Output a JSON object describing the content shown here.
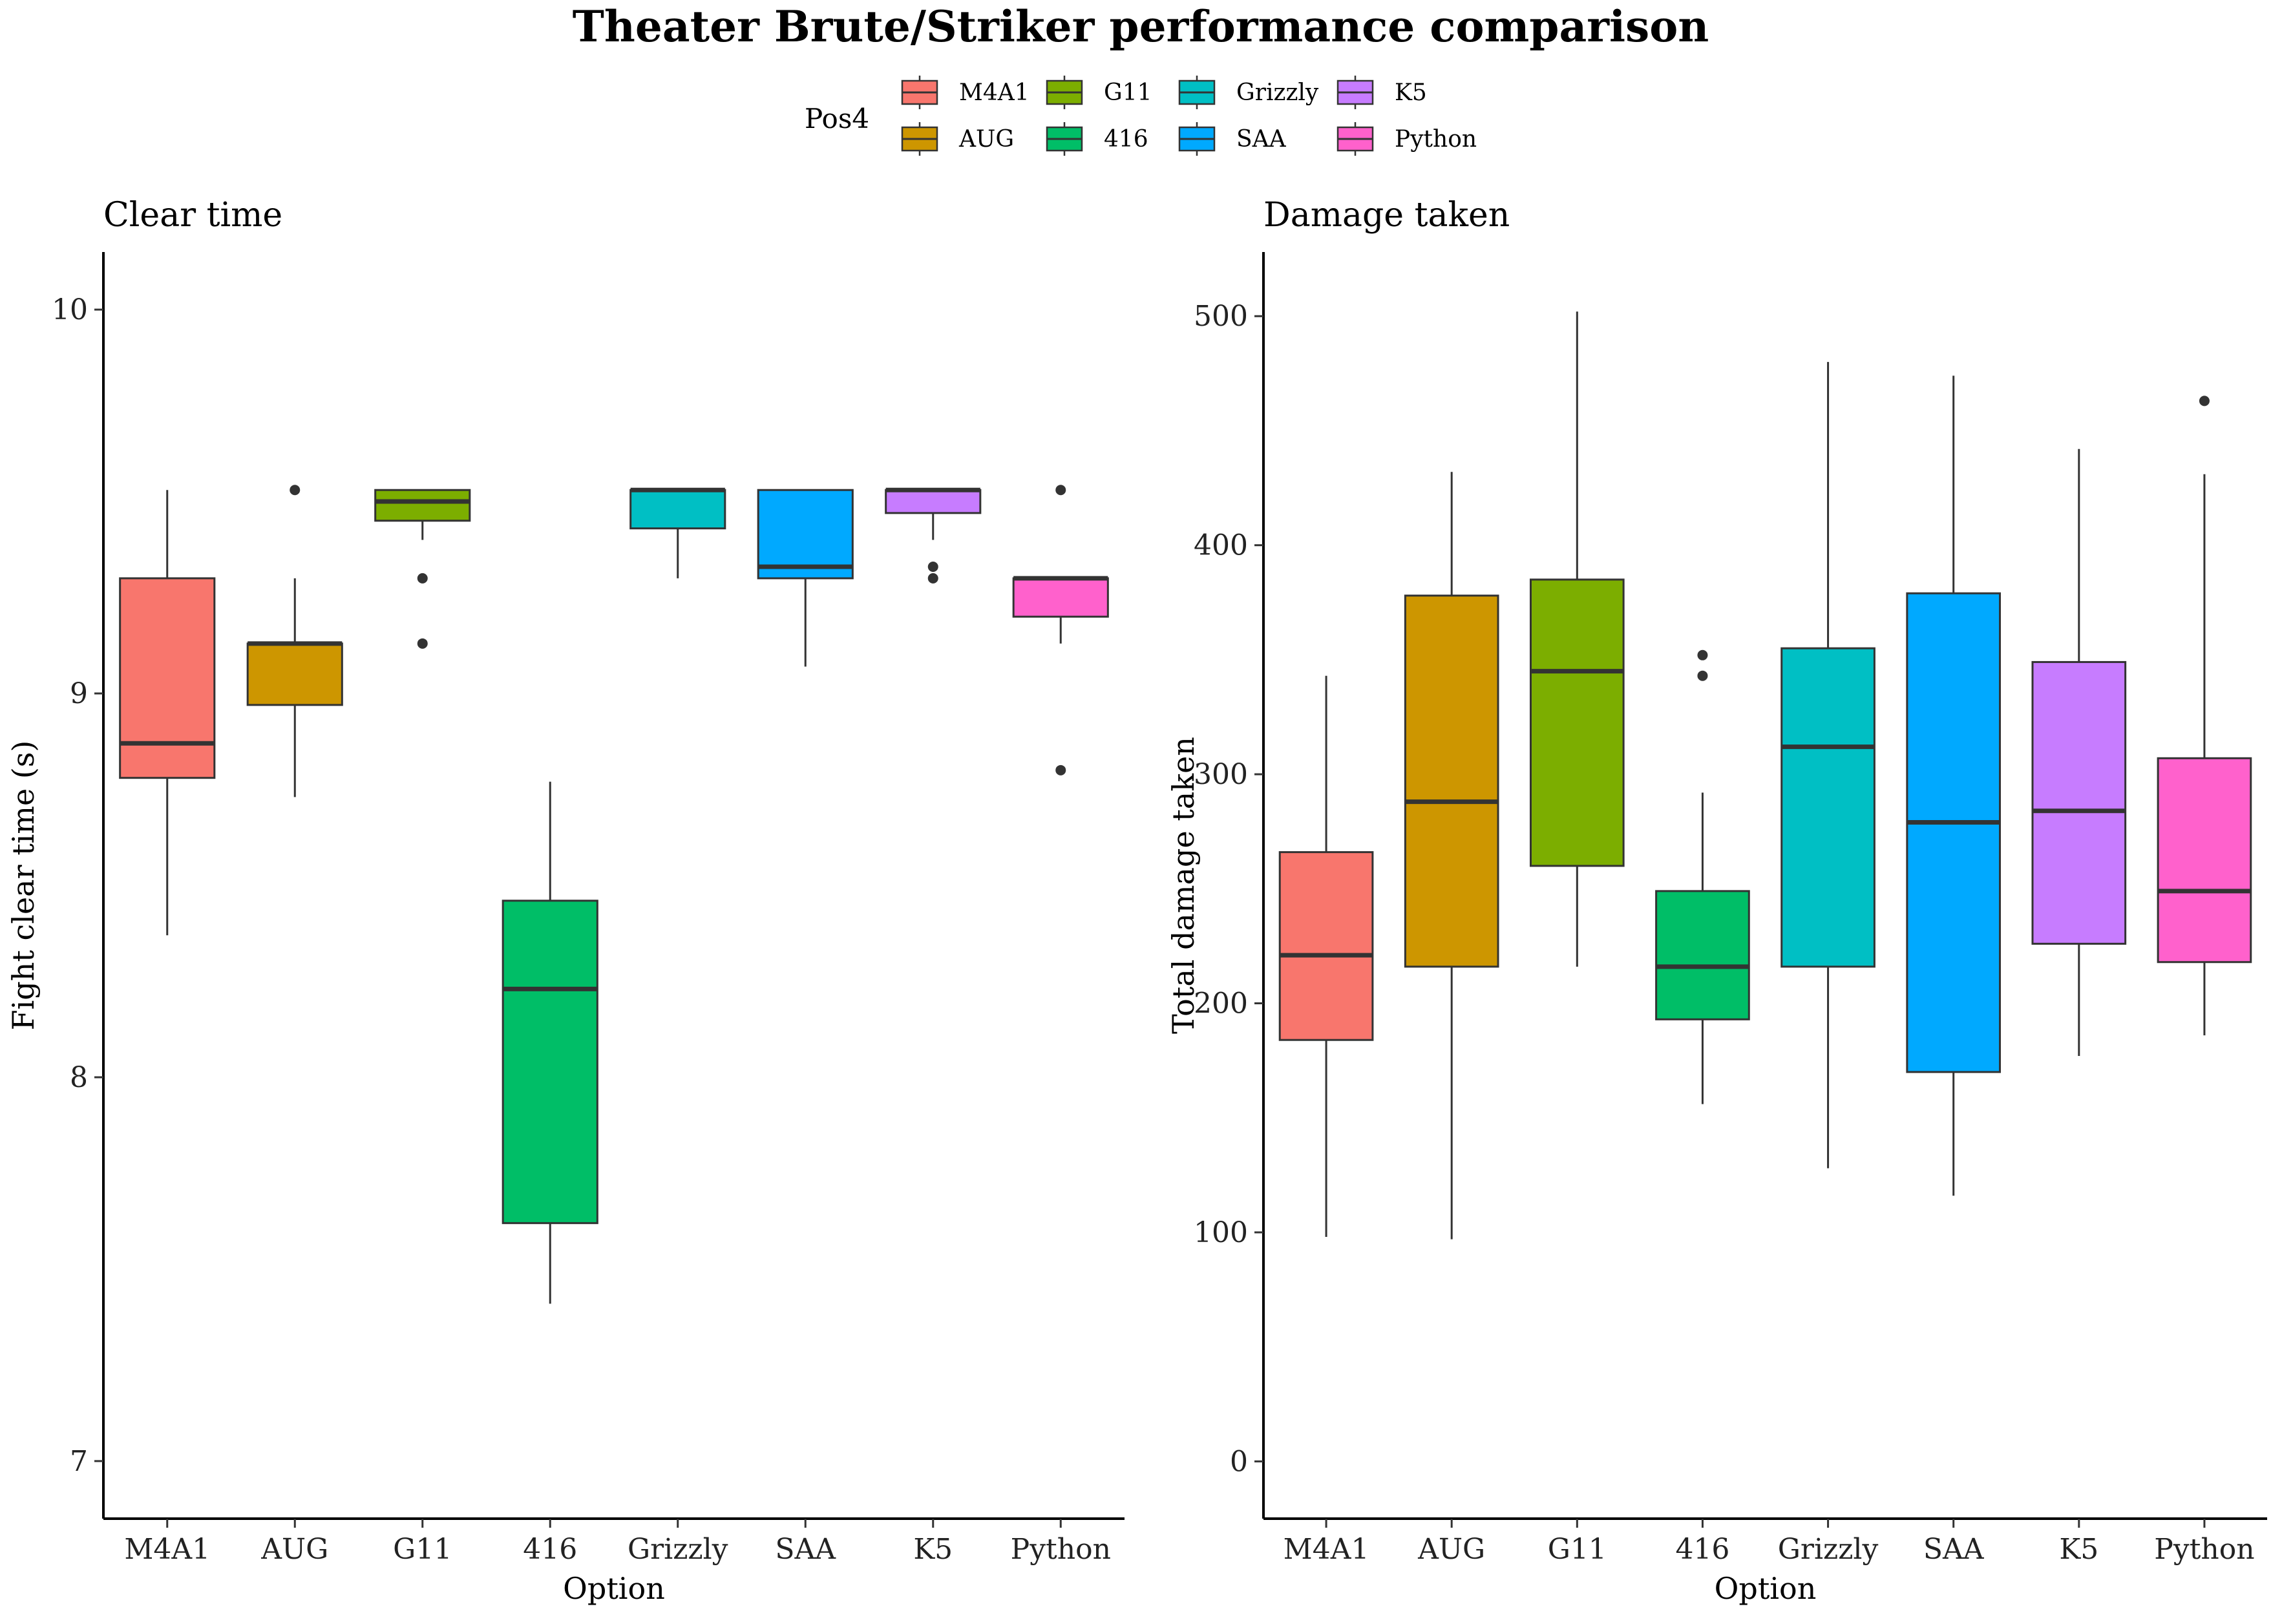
{
  "title": "Theater Brute/Striker performance comparison",
  "legend": {
    "title": "Pos4",
    "placement": "top",
    "items": [
      "M4A1",
      "G11",
      "Grizzly",
      "K5",
      "AUG",
      "416",
      "SAA",
      "Python"
    ]
  },
  "colors": {
    "M4A1": "#F8766D",
    "AUG": "#CD9600",
    "G11": "#7CAE00",
    "416": "#00BE67",
    "Grizzly": "#00BFC4",
    "SAA": "#00A9FF",
    "K5": "#C77CFF",
    "Python": "#FF61CC"
  },
  "chart_data": [
    {
      "type": "box",
      "title": "Clear time",
      "xlabel": "Option",
      "ylabel": "Fight clear time (s)",
      "ylim": [
        6.85,
        10.15
      ],
      "yticks": [
        7,
        8,
        9,
        10
      ],
      "categories": [
        "M4A1",
        "AUG",
        "G11",
        "416",
        "Grizzly",
        "SAA",
        "K5",
        "Python"
      ],
      "boxes": [
        {
          "name": "M4A1",
          "lower_whisker": 8.37,
          "q1": 8.78,
          "median": 8.87,
          "q3": 9.3,
          "upper_whisker": 9.53,
          "outliers": []
        },
        {
          "name": "AUG",
          "lower_whisker": 8.73,
          "q1": 8.97,
          "median": 9.13,
          "q3": 9.13,
          "upper_whisker": 9.3,
          "outliers": [
            9.53
          ]
        },
        {
          "name": "G11",
          "lower_whisker": 9.4,
          "q1": 9.45,
          "median": 9.5,
          "q3": 9.53,
          "upper_whisker": 9.53,
          "outliers": [
            9.3,
            9.13
          ]
        },
        {
          "name": "416",
          "lower_whisker": 7.41,
          "q1": 7.62,
          "median": 8.23,
          "q3": 8.46,
          "upper_whisker": 8.77,
          "outliers": []
        },
        {
          "name": "Grizzly",
          "lower_whisker": 9.3,
          "q1": 9.43,
          "median": 9.53,
          "q3": 9.53,
          "upper_whisker": 9.53,
          "outliers": []
        },
        {
          "name": "SAA",
          "lower_whisker": 9.07,
          "q1": 9.3,
          "median": 9.33,
          "q3": 9.53,
          "upper_whisker": 9.53,
          "outliers": []
        },
        {
          "name": "K5",
          "lower_whisker": 9.4,
          "q1": 9.47,
          "median": 9.53,
          "q3": 9.53,
          "upper_whisker": 9.53,
          "outliers": [
            9.33,
            9.3
          ]
        },
        {
          "name": "Python",
          "lower_whisker": 9.13,
          "q1": 9.2,
          "median": 9.3,
          "q3": 9.3,
          "upper_whisker": 9.3,
          "outliers": [
            9.53,
            8.8
          ]
        }
      ]
    },
    {
      "type": "box",
      "title": "Damage taken",
      "xlabel": "Option",
      "ylabel": "Total damage taken",
      "ylim": [
        -25,
        528
      ],
      "yticks": [
        0,
        100,
        200,
        300,
        400,
        500
      ],
      "categories": [
        "M4A1",
        "AUG",
        "G11",
        "416",
        "Grizzly",
        "SAA",
        "K5",
        "Python"
      ],
      "boxes": [
        {
          "name": "M4A1",
          "lower_whisker": 98,
          "q1": 184,
          "median": 221,
          "q3": 266,
          "upper_whisker": 343,
          "outliers": []
        },
        {
          "name": "AUG",
          "lower_whisker": 97,
          "q1": 216,
          "median": 288,
          "q3": 378,
          "upper_whisker": 432,
          "outliers": []
        },
        {
          "name": "G11",
          "lower_whisker": 216,
          "q1": 260,
          "median": 345,
          "q3": 385,
          "upper_whisker": 502,
          "outliers": []
        },
        {
          "name": "416",
          "lower_whisker": 156,
          "q1": 193,
          "median": 216,
          "q3": 249,
          "upper_whisker": 292,
          "outliers": [
            352,
            343
          ]
        },
        {
          "name": "Grizzly",
          "lower_whisker": 128,
          "q1": 216,
          "median": 312,
          "q3": 355,
          "upper_whisker": 480,
          "outliers": []
        },
        {
          "name": "SAA",
          "lower_whisker": 116,
          "q1": 170,
          "median": 279,
          "q3": 379,
          "upper_whisker": 474,
          "outliers": []
        },
        {
          "name": "K5",
          "lower_whisker": 177,
          "q1": 226,
          "median": 284,
          "q3": 349,
          "upper_whisker": 442,
          "outliers": []
        },
        {
          "name": "Python",
          "lower_whisker": 186,
          "q1": 218,
          "median": 249,
          "q3": 307,
          "upper_whisker": 431,
          "outliers": [
            463
          ]
        }
      ]
    }
  ]
}
